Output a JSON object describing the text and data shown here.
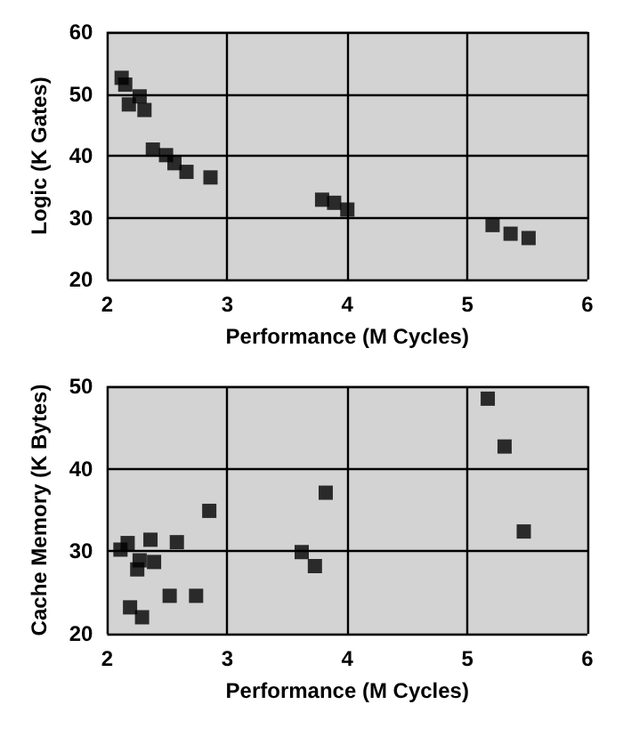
{
  "chart_data": [
    {
      "type": "scatter",
      "xlabel": "Performance (M Cycles)",
      "ylabel": "Logic (K Gates)",
      "x": [
        2.12,
        2.15,
        2.27,
        2.18,
        2.31,
        2.38,
        2.49,
        2.56,
        2.66,
        2.86,
        3.79,
        3.89,
        4.0,
        5.21,
        5.36,
        5.51
      ],
      "values": [
        52.6,
        51.5,
        49.6,
        48.3,
        47.4,
        41.0,
        40.1,
        38.8,
        37.4,
        36.5,
        32.9,
        32.4,
        31.3,
        28.8,
        27.4,
        26.7
      ],
      "color": "#000000",
      "marker": "square",
      "xlim": [
        2,
        6
      ],
      "xticks": [
        2,
        3,
        4,
        5,
        6
      ],
      "ylim": [
        20,
        60
      ],
      "yticks": [
        20,
        30,
        40,
        50,
        60
      ],
      "grid": true
    },
    {
      "type": "scatter",
      "xlabel": "Performance (M Cycles)",
      "ylabel": "Cache Memory (K Bytes)",
      "x": [
        5.17,
        5.31,
        5.47,
        3.82,
        2.85,
        3.62,
        3.73,
        2.11,
        2.17,
        2.36,
        2.58,
        2.27,
        2.39,
        2.25,
        2.52,
        2.74,
        2.19,
        2.29
      ],
      "values": [
        48.5,
        42.7,
        32.4,
        37.1,
        34.9,
        29.9,
        28.2,
        30.2,
        31.0,
        31.4,
        31.1,
        28.9,
        28.7,
        27.8,
        24.6,
        24.6,
        23.2,
        22.0
      ],
      "color": "#000000",
      "marker": "square",
      "xlim": [
        2,
        6
      ],
      "xticks": [
        2,
        3,
        4,
        5,
        6
      ],
      "ylim": [
        20,
        50
      ],
      "yticks": [
        20,
        30,
        40,
        50
      ],
      "grid": true
    }
  ]
}
